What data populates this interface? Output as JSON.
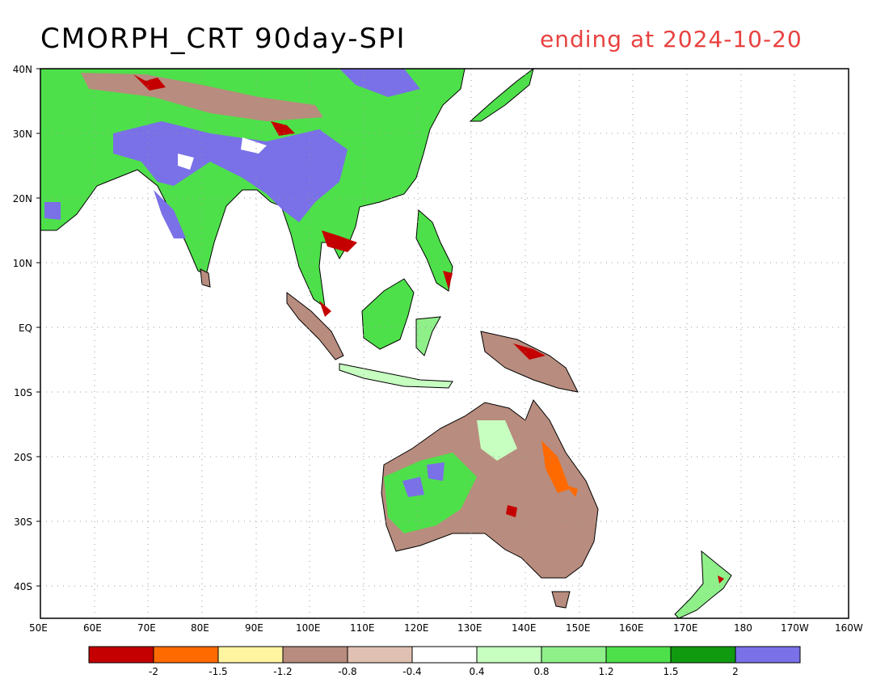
{
  "title": "CMORPH_CRT 90day-SPI",
  "subtitle": "ending at 2024-10-20",
  "lat_labels": [
    "40N",
    "30N",
    "20N",
    "10N",
    "EQ",
    "10S",
    "20S",
    "30S",
    "40S"
  ],
  "lon_labels": [
    "50E",
    "60E",
    "70E",
    "80E",
    "90E",
    "100E",
    "110E",
    "120E",
    "130E",
    "140E",
    "150E",
    "160E",
    "170E",
    "180",
    "170W",
    "160W"
  ],
  "legend": {
    "colors": [
      "#c40000",
      "#ff6a00",
      "#fff4a0",
      "#b88c7e",
      "#e0c0b2",
      "#ffffff",
      "#c6ffc0",
      "#8ff08a",
      "#4ee04a",
      "#109a10",
      "#7a70e8"
    ],
    "labels": [
      "-2",
      "-1.5",
      "-1.2",
      "-0.8",
      "-0.4",
      "0.4",
      "0.8",
      "1.2",
      "1.5",
      "2"
    ]
  },
  "colors": {
    "land_drought": "#b88c7e",
    "land_wet": "#4ee04a",
    "land_very_wet": "#7a70e8",
    "coast": "#000000",
    "grid": "#999999"
  }
}
